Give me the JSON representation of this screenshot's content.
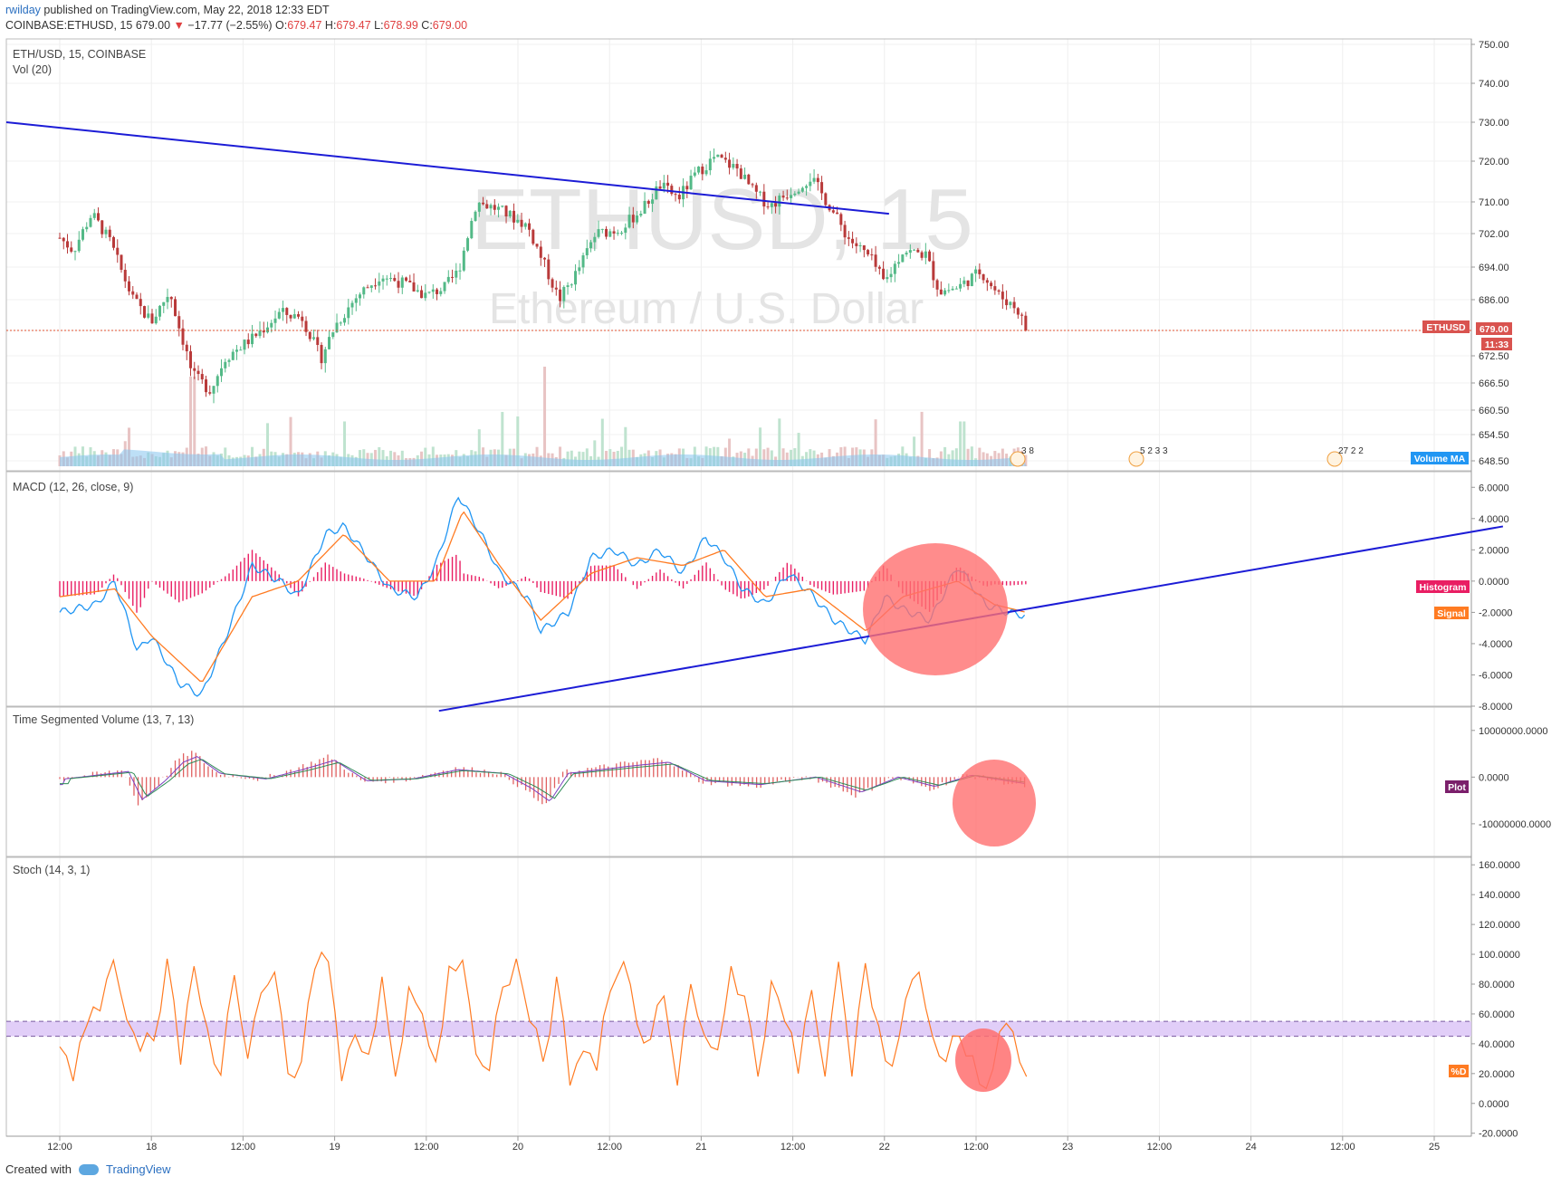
{
  "header": {
    "user": "rwilday",
    "published": "published on TradingView.com, May 22, 2018 12:33 EDT",
    "symbol": "COINBASE:ETHUSD, 15",
    "last": "679.00",
    "change": "−17.77 (−2.55%)",
    "o_label": "O:",
    "o": "679.47",
    "h_label": "H:",
    "h": "679.47",
    "l_label": "L:",
    "l": "678.99",
    "c_label": "C:",
    "c": "679.00"
  },
  "panes": {
    "price_title": "ETH/USD, 15, COINBASE",
    "vol_title": "Vol (20)",
    "macd_title": "MACD (12, 26, close, 9)",
    "tsv_title": "Time Segmented Volume (13, 7, 13)",
    "stoch_title": "Stoch (14, 3, 1)"
  },
  "watermark": {
    "line1": "ETHUSD, 15",
    "line2": "Ethereum / U.S. Dollar"
  },
  "labels": {
    "ethusd_tag": "ETHUSD",
    "price_tag": "679.00",
    "timer_tag": "11:33",
    "volume_ma": "Volume MA",
    "histogram": "Histogram",
    "signal": "Signal",
    "plot": "Plot",
    "pctd": "%D",
    "event1": "3  8",
    "event2": "5 2 3 3",
    "event3": "27 2 2"
  },
  "colors": {
    "up": "#53b987",
    "down": "#b93a3a",
    "trendline": "#1c1cd6",
    "macd": "#2196f3",
    "signal": "#ff7b22",
    "histogram": "#e91e63",
    "stoch": "#ff7b22",
    "band": "#dcc6f7",
    "highlight": "#ff6f6f",
    "tsv": "#e06060",
    "tsv_ma1": "#7b3fbf",
    "tsv_ma2": "#2e8b57",
    "volume_ma": "#87c4ee"
  },
  "chart_data": [
    {
      "type": "candlestick",
      "title": "ETH/USD, 15, COINBASE",
      "ylim": [
        645,
        751
      ],
      "y_ticks": [
        "750.00",
        "740.00",
        "730.00",
        "720.00",
        "710.00",
        "702.00",
        "694.00",
        "686.00",
        "679.00",
        "672.50",
        "666.50",
        "660.50",
        "654.50",
        "648.50"
      ],
      "x_ticks": [
        "12:00",
        "18",
        "12:00",
        "19",
        "12:00",
        "20",
        "12:00",
        "21",
        "12:00",
        "22",
        "12:00",
        "23",
        "12:00",
        "24",
        "12:00",
        "25"
      ],
      "last_price": 679.0,
      "close_path": [
        {
          "x": 0.0,
          "y": 701
        },
        {
          "x": 0.15,
          "y": 698
        },
        {
          "x": 0.35,
          "y": 707
        },
        {
          "x": 0.55,
          "y": 700
        },
        {
          "x": 0.8,
          "y": 686
        },
        {
          "x": 1.0,
          "y": 681
        },
        {
          "x": 1.2,
          "y": 688
        },
        {
          "x": 1.45,
          "y": 668
        },
        {
          "x": 1.65,
          "y": 665
        },
        {
          "x": 1.8,
          "y": 672
        },
        {
          "x": 2.1,
          "y": 677
        },
        {
          "x": 2.4,
          "y": 683
        },
        {
          "x": 2.65,
          "y": 682
        },
        {
          "x": 2.85,
          "y": 672
        },
        {
          "x": 3.0,
          "y": 680
        },
        {
          "x": 3.25,
          "y": 687
        },
        {
          "x": 3.5,
          "y": 692
        },
        {
          "x": 3.75,
          "y": 690
        },
        {
          "x": 4.0,
          "y": 687
        },
        {
          "x": 4.2,
          "y": 689
        },
        {
          "x": 4.35,
          "y": 693
        },
        {
          "x": 4.55,
          "y": 710
        },
        {
          "x": 4.8,
          "y": 708
        },
        {
          "x": 5.1,
          "y": 704
        },
        {
          "x": 5.3,
          "y": 694
        },
        {
          "x": 5.45,
          "y": 686
        },
        {
          "x": 5.65,
          "y": 693
        },
        {
          "x": 5.85,
          "y": 702
        },
        {
          "x": 6.1,
          "y": 703
        },
        {
          "x": 6.35,
          "y": 708
        },
        {
          "x": 6.55,
          "y": 714
        },
        {
          "x": 6.75,
          "y": 711
        },
        {
          "x": 6.95,
          "y": 717
        },
        {
          "x": 7.15,
          "y": 721
        },
        {
          "x": 7.4,
          "y": 718
        },
        {
          "x": 7.55,
          "y": 713
        },
        {
          "x": 7.75,
          "y": 709
        },
        {
          "x": 8.0,
          "y": 713
        },
        {
          "x": 8.2,
          "y": 716
        },
        {
          "x": 8.4,
          "y": 709
        },
        {
          "x": 8.6,
          "y": 701
        },
        {
          "x": 8.85,
          "y": 696
        },
        {
          "x": 9.0,
          "y": 690
        },
        {
          "x": 9.2,
          "y": 698
        },
        {
          "x": 9.45,
          "y": 697
        },
        {
          "x": 9.6,
          "y": 688
        },
        {
          "x": 9.8,
          "y": 689
        },
        {
          "x": 10.05,
          "y": 693
        },
        {
          "x": 10.25,
          "y": 687
        },
        {
          "x": 10.45,
          "y": 684
        },
        {
          "x": 10.55,
          "y": 679
        }
      ],
      "volume_peaks": [
        {
          "x": 1.45,
          "v": 0.9
        },
        {
          "x": 5.0,
          "v": 0.5
        },
        {
          "x": 5.3,
          "v": 1.0
        },
        {
          "x": 3.1,
          "v": 0.45
        },
        {
          "x": 9.85,
          "v": 0.45
        }
      ],
      "trendline": [
        {
          "x": 0.0,
          "y": 730
        },
        {
          "x": 9.05,
          "y": 707
        }
      ]
    },
    {
      "type": "line",
      "title": "MACD (12, 26, close, 9)",
      "ylim": [
        -8,
        7
      ],
      "y_ticks": [
        "6.0000",
        "4.0000",
        "2.0000",
        "0.0000",
        "-2.0000",
        "-4.0000",
        "-6.0000",
        "-8.0000"
      ],
      "series": [
        {
          "name": "MACD",
          "points": [
            [
              0,
              -2
            ],
            [
              0.4,
              -1.5
            ],
            [
              0.6,
              0
            ],
            [
              0.85,
              -4.5
            ],
            [
              1.0,
              -3.5
            ],
            [
              1.3,
              -6.5
            ],
            [
              1.55,
              -7.3
            ],
            [
              1.85,
              -3
            ],
            [
              2.1,
              1
            ],
            [
              2.4,
              0
            ],
            [
              2.6,
              -1
            ],
            [
              2.9,
              3
            ],
            [
              3.1,
              3.5
            ],
            [
              3.3,
              2
            ],
            [
              3.6,
              -0.5
            ],
            [
              3.9,
              -1
            ],
            [
              4.1,
              1
            ],
            [
              4.35,
              5.5
            ],
            [
              4.6,
              3
            ],
            [
              4.8,
              0.5
            ],
            [
              5.1,
              -1
            ],
            [
              5.25,
              -3.2
            ],
            [
              5.55,
              -2
            ],
            [
              5.8,
              1.5
            ],
            [
              6.05,
              2
            ],
            [
              6.3,
              1
            ],
            [
              6.55,
              2
            ],
            [
              6.8,
              0.5
            ],
            [
              7.05,
              2.8
            ],
            [
              7.25,
              1.5
            ],
            [
              7.45,
              -0.5
            ],
            [
              7.7,
              -1.5
            ],
            [
              7.95,
              0.5
            ],
            [
              8.2,
              -0.8
            ],
            [
              8.45,
              -2.5
            ],
            [
              8.8,
              -3.8
            ],
            [
              9.0,
              -1
            ],
            [
              9.2,
              -1.8
            ],
            [
              9.5,
              -2.5
            ],
            [
              9.8,
              1
            ],
            [
              10.1,
              -1.5
            ],
            [
              10.35,
              -2
            ],
            [
              10.55,
              -2.2
            ]
          ]
        },
        {
          "name": "Signal",
          "points": [
            [
              0,
              -1
            ],
            [
              0.6,
              -0.5
            ],
            [
              1.0,
              -3.5
            ],
            [
              1.55,
              -6.5
            ],
            [
              2.1,
              -1
            ],
            [
              2.6,
              0
            ],
            [
              3.1,
              3
            ],
            [
              3.6,
              0
            ],
            [
              4.1,
              0
            ],
            [
              4.4,
              4.5
            ],
            [
              4.8,
              1
            ],
            [
              5.25,
              -2.5
            ],
            [
              5.8,
              0.5
            ],
            [
              6.3,
              1.5
            ],
            [
              6.8,
              1
            ],
            [
              7.25,
              2
            ],
            [
              7.7,
              -1
            ],
            [
              8.2,
              -0.5
            ],
            [
              8.8,
              -3.2
            ],
            [
              9.2,
              -1
            ],
            [
              9.8,
              0
            ],
            [
              10.2,
              -1.5
            ],
            [
              10.55,
              -2
            ]
          ]
        }
      ],
      "trendline": [
        {
          "x": 4.0,
          "y": -8.3
        },
        {
          "x": 15.75,
          "y": 3.5
        }
      ]
    },
    {
      "type": "bar",
      "title": "Time Segmented Volume (13, 7, 13)",
      "ylim": [
        -17000000,
        15000000
      ],
      "y_ticks": [
        "10000000.0000",
        "0.0000",
        "-10000000.0000"
      ],
      "series": [
        {
          "name": "Plot",
          "points": [
            [
              0,
              -0.05
            ],
            [
              0.7,
              0.15
            ],
            [
              0.85,
              -0.6
            ],
            [
              1.1,
              -0.1
            ],
            [
              1.3,
              0.4
            ],
            [
              1.45,
              0.55
            ],
            [
              1.7,
              0.1
            ],
            [
              2.2,
              -0.05
            ],
            [
              2.6,
              0.2
            ],
            [
              2.95,
              0.45
            ],
            [
              3.3,
              -0.1
            ],
            [
              3.8,
              -0.05
            ],
            [
              4.3,
              0.2
            ],
            [
              4.8,
              0.1
            ],
            [
              5.1,
              -0.3
            ],
            [
              5.3,
              -0.65
            ],
            [
              5.5,
              0.1
            ],
            [
              6.2,
              0.3
            ],
            [
              6.6,
              0.4
            ],
            [
              7.0,
              -0.1
            ],
            [
              7.6,
              -0.2
            ],
            [
              8.2,
              0
            ],
            [
              8.7,
              -0.4
            ],
            [
              9.1,
              0
            ],
            [
              9.5,
              -0.25
            ],
            [
              9.9,
              0.05
            ],
            [
              10.55,
              -0.2
            ]
          ]
        }
      ]
    },
    {
      "type": "line",
      "title": "Stoch (14, 3, 1)",
      "ylim": [
        -22,
        165
      ],
      "y_ticks": [
        "160.0000",
        "140.0000",
        "120.0000",
        "100.0000",
        "80.0000",
        "60.0000",
        "40.0000",
        "20.0000",
        "0.0000",
        "-20.0000"
      ],
      "band": [
        45,
        55
      ],
      "series": [
        {
          "name": "%D",
          "values": [
            38,
            15,
            52,
            62,
            96,
            56,
            35,
            42,
            97,
            26,
            92,
            50,
            19,
            86,
            30,
            74,
            88,
            20,
            28,
            90,
            95,
            15,
            46,
            33,
            85,
            18,
            78,
            60,
            28,
            92,
            96,
            33,
            22,
            78,
            97,
            55,
            28,
            85,
            12,
            35,
            22,
            75,
            95,
            53,
            43,
            72,
            12,
            80,
            46,
            36,
            92,
            72,
            18,
            82,
            55,
            20,
            76,
            18,
            95,
            18,
            94,
            52,
            25,
            70,
            88,
            45,
            28,
            45,
            32,
            10,
            48,
            48,
            18
          ]
        }
      ]
    }
  ]
}
